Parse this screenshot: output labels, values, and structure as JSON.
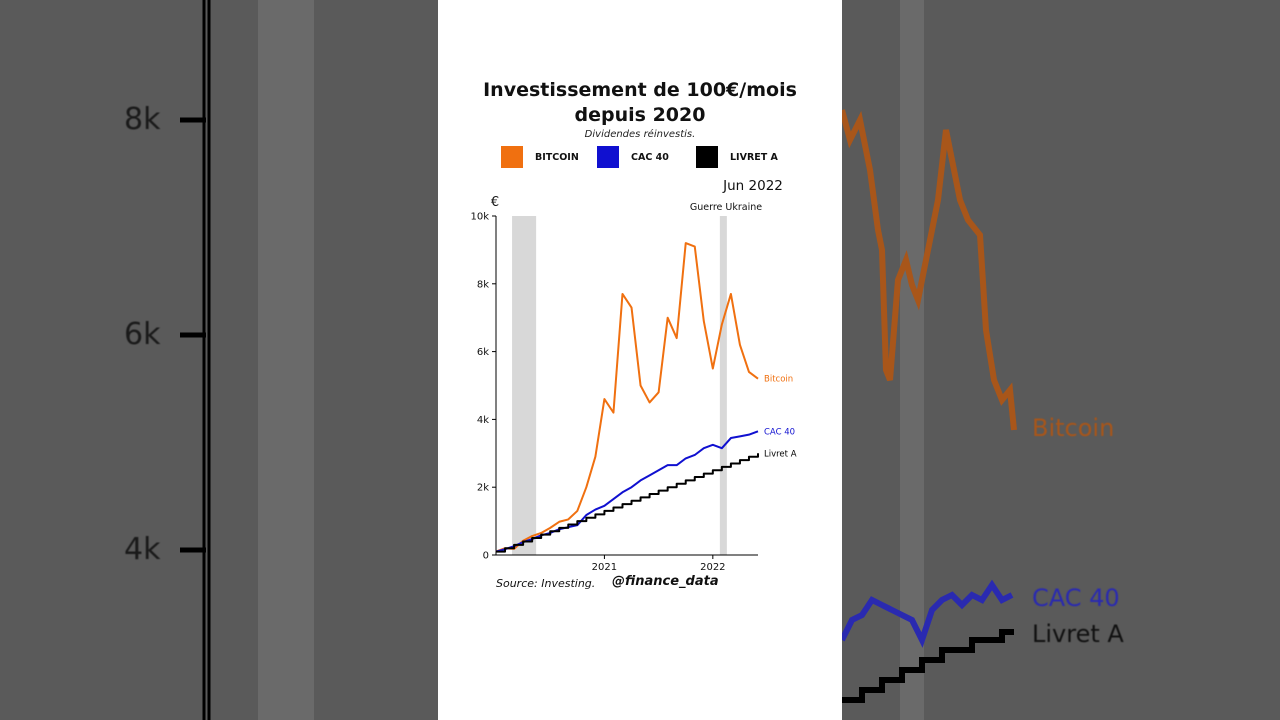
{
  "background": {
    "tick_labels": [
      "8k",
      "6k",
      "4k"
    ],
    "series_labels": [
      "Bitcoin",
      "CAC 40",
      "Livret A"
    ]
  },
  "card": {
    "title_line1": "Investissement de 100€/mois",
    "title_line2": "depuis 2020",
    "subtitle": "Dividendes réinvestis.",
    "source": "Source: Investing.",
    "handle": "@finance_data"
  },
  "colors": {
    "bitcoin": "#f07010",
    "cac40": "#1010d0",
    "livret_a": "#000000",
    "shade": "#d8d8d8"
  },
  "chart_data": {
    "type": "line",
    "title": "Investissement de 100€/mois depuis 2020",
    "subtitle": "Dividendes réinvestis.",
    "ylabel": "€",
    "xlabel": "",
    "ylim": [
      0,
      10000
    ],
    "xlim": [
      "2020-01",
      "2022-06"
    ],
    "y_ticks": [
      0,
      2000,
      4000,
      6000,
      8000,
      10000
    ],
    "y_tick_labels": [
      "0",
      "2k",
      "4k",
      "6k",
      "8k",
      "10k"
    ],
    "x_ticks": [
      "2021-01",
      "2022-01"
    ],
    "x_tick_labels": [
      "2021",
      "2022"
    ],
    "grid": false,
    "legend": {
      "placement": "top",
      "entries": [
        "BITCOIN",
        "CAC 40",
        "LIVRET A"
      ]
    },
    "annotations": [
      {
        "text": "Jun 2022",
        "at": "2022-06"
      },
      {
        "text": "Guerre Ukraine",
        "at": "2022-02"
      }
    ],
    "shaded_periods": [
      {
        "start": "2020-03",
        "end": "2020-05"
      },
      {
        "start": "2022-02",
        "end": "2022-02"
      }
    ],
    "series": [
      {
        "name": "Bitcoin",
        "label": "Bitcoin",
        "dates": [
          "2020-01",
          "2020-02",
          "2020-03",
          "2020-04",
          "2020-05",
          "2020-06",
          "2020-07",
          "2020-08",
          "2020-09",
          "2020-10",
          "2020-11",
          "2020-12",
          "2021-01",
          "2021-02",
          "2021-03",
          "2021-04",
          "2021-05",
          "2021-06",
          "2021-07",
          "2021-08",
          "2021-09",
          "2021-10",
          "2021-11",
          "2021-12",
          "2022-01",
          "2022-02",
          "2022-03",
          "2022-04",
          "2022-05",
          "2022-06"
        ],
        "values": [
          100,
          200,
          180,
          420,
          560,
          650,
          800,
          980,
          1050,
          1300,
          2000,
          2900,
          4600,
          4200,
          7700,
          7300,
          5000,
          4500,
          4800,
          7000,
          6400,
          9200,
          9100,
          6900,
          5500,
          6800,
          7700,
          6200,
          5400,
          5200
        ]
      },
      {
        "name": "CAC 40",
        "label": "CAC 40",
        "dates": [
          "2020-01",
          "2020-02",
          "2020-03",
          "2020-04",
          "2020-05",
          "2020-06",
          "2020-07",
          "2020-08",
          "2020-09",
          "2020-10",
          "2020-11",
          "2020-12",
          "2021-01",
          "2021-02",
          "2021-03",
          "2021-04",
          "2021-05",
          "2021-06",
          "2021-07",
          "2021-08",
          "2021-09",
          "2021-10",
          "2021-11",
          "2021-12",
          "2022-01",
          "2022-02",
          "2022-03",
          "2022-04",
          "2022-05",
          "2022-06"
        ],
        "values": [
          100,
          170,
          260,
          380,
          470,
          580,
          650,
          760,
          820,
          880,
          1180,
          1340,
          1450,
          1650,
          1850,
          2000,
          2200,
          2350,
          2500,
          2650,
          2650,
          2850,
          2950,
          3150,
          3250,
          3150,
          3450,
          3500,
          3550,
          3650
        ]
      },
      {
        "name": "Livret A",
        "label": "Livret A",
        "dates": [
          "2020-01",
          "2020-02",
          "2020-03",
          "2020-04",
          "2020-05",
          "2020-06",
          "2020-07",
          "2020-08",
          "2020-09",
          "2020-10",
          "2020-11",
          "2020-12",
          "2021-01",
          "2021-02",
          "2021-03",
          "2021-04",
          "2021-05",
          "2021-06",
          "2021-07",
          "2021-08",
          "2021-09",
          "2021-10",
          "2021-11",
          "2021-12",
          "2022-01",
          "2022-02",
          "2022-03",
          "2022-04",
          "2022-05",
          "2022-06"
        ],
        "values": [
          100,
          200,
          300,
          400,
          500,
          600,
          700,
          800,
          900,
          1000,
          1100,
          1200,
          1300,
          1400,
          1500,
          1600,
          1700,
          1800,
          1900,
          2000,
          2100,
          2200,
          2300,
          2400,
          2500,
          2600,
          2700,
          2800,
          2900,
          3000
        ]
      }
    ]
  }
}
